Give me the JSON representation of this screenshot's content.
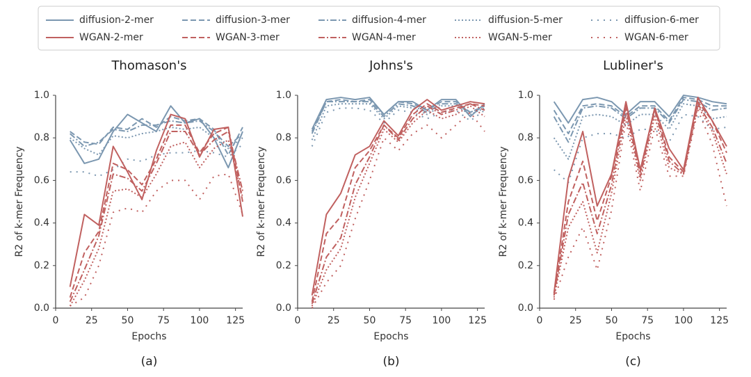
{
  "chart_data": [
    {
      "type": "line",
      "title": "Thomason's",
      "caption": "(a)",
      "xlabel": "Epochs",
      "ylabel": "R2 of k-mer Frequency",
      "x": [
        10,
        20,
        30,
        40,
        50,
        60,
        70,
        80,
        90,
        100,
        110,
        120,
        130
      ],
      "xlim": [
        0,
        130
      ],
      "xticks": [
        0,
        25,
        50,
        75,
        100,
        125
      ],
      "ylim": [
        0,
        1
      ],
      "yticks": [
        {
          "value": 0,
          "label": "0.0"
        },
        0.2,
        0.4,
        0.6,
        0.8,
        {
          "value": 1,
          "label": "1.0"
        }
      ],
      "series": [
        {
          "name": "diffusion-2-mer",
          "color": "#7b97b0",
          "dash": "solid",
          "values": [
            0.79,
            0.68,
            0.7,
            0.83,
            0.91,
            0.87,
            0.83,
            0.95,
            0.87,
            0.89,
            0.8,
            0.66,
            0.83
          ]
        },
        {
          "name": "diffusion-3-mer",
          "color": "#7b97b0",
          "dash": "dashed",
          "values": [
            0.83,
            0.78,
            0.77,
            0.85,
            0.84,
            0.89,
            0.85,
            0.9,
            0.88,
            0.89,
            0.84,
            0.72,
            0.85
          ]
        },
        {
          "name": "diffusion-4-mer",
          "color": "#7b97b0",
          "dash": "dashdot",
          "values": [
            0.82,
            0.76,
            0.78,
            0.84,
            0.83,
            0.86,
            0.86,
            0.88,
            0.87,
            0.88,
            0.83,
            0.76,
            0.82
          ]
        },
        {
          "name": "diffusion-5-mer",
          "color": "#7b97b0",
          "dash": "dotted",
          "values": [
            0.8,
            0.75,
            0.72,
            0.81,
            0.8,
            0.82,
            0.83,
            0.85,
            0.84,
            0.85,
            0.8,
            0.75,
            0.8
          ]
        },
        {
          "name": "diffusion-6-mer",
          "color": "#7b97b0",
          "dash": "loosedot",
          "values": [
            0.64,
            0.64,
            0.62,
            0.65,
            0.7,
            0.69,
            0.72,
            0.73,
            0.73,
            0.74,
            0.73,
            0.71,
            0.77
          ]
        },
        {
          "name": "WGAN-2-mer",
          "color": "#c0605f",
          "dash": "solid",
          "values": [
            0.1,
            0.44,
            0.39,
            0.76,
            0.64,
            0.51,
            0.74,
            0.91,
            0.89,
            0.71,
            0.84,
            0.85,
            0.43
          ]
        },
        {
          "name": "WGAN-3-mer",
          "color": "#c0605f",
          "dash": "dashed",
          "values": [
            0.05,
            0.26,
            0.36,
            0.68,
            0.65,
            0.58,
            0.7,
            0.86,
            0.86,
            0.73,
            0.82,
            0.85,
            0.5
          ]
        },
        {
          "name": "WGAN-4-mer",
          "color": "#c0605f",
          "dash": "dashdot",
          "values": [
            0.03,
            0.18,
            0.34,
            0.63,
            0.61,
            0.55,
            0.68,
            0.83,
            0.83,
            0.72,
            0.79,
            0.83,
            0.55
          ]
        },
        {
          "name": "WGAN-5-mer",
          "color": "#c0605f",
          "dash": "dotted",
          "values": [
            0.01,
            0.13,
            0.28,
            0.55,
            0.56,
            0.52,
            0.63,
            0.76,
            0.78,
            0.66,
            0.75,
            0.79,
            0.52
          ]
        },
        {
          "name": "WGAN-6-mer",
          "color": "#c0605f",
          "dash": "loosedot",
          "values": [
            0.01,
            0.05,
            0.2,
            0.45,
            0.47,
            0.45,
            0.55,
            0.6,
            0.6,
            0.51,
            0.62,
            0.63,
            0.44
          ]
        }
      ]
    },
    {
      "type": "line",
      "title": "Johns's",
      "caption": "(b)",
      "xlabel": "Epochs",
      "ylabel": "R2 of k-mer Frequency",
      "x": [
        10,
        20,
        30,
        40,
        50,
        60,
        70,
        80,
        90,
        100,
        110,
        120,
        130
      ],
      "xlim": [
        0,
        130
      ],
      "xticks": [
        0,
        25,
        50,
        75,
        100,
        125
      ],
      "ylim": [
        0,
        1
      ],
      "yticks": [
        {
          "value": 0,
          "label": "0.0"
        },
        0.2,
        0.4,
        0.6,
        0.8,
        {
          "value": 1,
          "label": "1.0"
        }
      ],
      "series": [
        {
          "color": "#7b97b0",
          "dash": "solid",
          "values": [
            0.84,
            0.98,
            0.99,
            0.98,
            0.99,
            0.91,
            0.97,
            0.97,
            0.93,
            0.98,
            0.98,
            0.9,
            0.96
          ]
        },
        {
          "color": "#7b97b0",
          "dash": "dashed",
          "values": [
            0.83,
            0.97,
            0.98,
            0.97,
            0.98,
            0.91,
            0.97,
            0.96,
            0.93,
            0.97,
            0.97,
            0.92,
            0.95
          ]
        },
        {
          "color": "#7b97b0",
          "dash": "dashdot",
          "values": [
            0.82,
            0.97,
            0.97,
            0.97,
            0.97,
            0.9,
            0.96,
            0.95,
            0.92,
            0.96,
            0.96,
            0.92,
            0.95
          ]
        },
        {
          "color": "#7b97b0",
          "dash": "dotted",
          "values": [
            0.79,
            0.95,
            0.96,
            0.96,
            0.96,
            0.89,
            0.95,
            0.94,
            0.91,
            0.95,
            0.95,
            0.91,
            0.94
          ]
        },
        {
          "color": "#7b97b0",
          "dash": "loosedot",
          "values": [
            0.76,
            0.92,
            0.94,
            0.94,
            0.93,
            0.87,
            0.93,
            0.92,
            0.89,
            0.92,
            0.93,
            0.88,
            0.93
          ]
        },
        {
          "color": "#c0605f",
          "dash": "solid",
          "values": [
            0.06,
            0.44,
            0.54,
            0.72,
            0.76,
            0.88,
            0.81,
            0.93,
            0.98,
            0.93,
            0.95,
            0.97,
            0.96
          ]
        },
        {
          "color": "#c0605f",
          "dash": "dashed",
          "values": [
            0.03,
            0.35,
            0.43,
            0.66,
            0.74,
            0.86,
            0.8,
            0.91,
            0.96,
            0.92,
            0.94,
            0.96,
            0.95
          ]
        },
        {
          "color": "#c0605f",
          "dash": "dashdot",
          "values": [
            0.02,
            0.24,
            0.33,
            0.58,
            0.71,
            0.86,
            0.79,
            0.89,
            0.95,
            0.91,
            0.93,
            0.96,
            0.93
          ]
        },
        {
          "color": "#c0605f",
          "dash": "dotted",
          "values": [
            0.01,
            0.18,
            0.28,
            0.52,
            0.68,
            0.84,
            0.78,
            0.87,
            0.93,
            0.89,
            0.91,
            0.95,
            0.9
          ]
        },
        {
          "color": "#c0605f",
          "dash": "loosedot",
          "values": [
            0.0,
            0.12,
            0.2,
            0.42,
            0.6,
            0.8,
            0.74,
            0.82,
            0.86,
            0.8,
            0.86,
            0.92,
            0.83
          ]
        }
      ]
    },
    {
      "type": "line",
      "title": "Lubliner's",
      "caption": "(c)",
      "xlabel": "Epochs",
      "ylabel": "R2 of k-mer Frequency",
      "x": [
        10,
        20,
        30,
        40,
        50,
        60,
        70,
        80,
        90,
        100,
        110,
        120,
        130
      ],
      "xlim": [
        0,
        130
      ],
      "xticks": [
        0,
        25,
        50,
        75,
        100,
        125
      ],
      "ylim": [
        0,
        1
      ],
      "yticks": [
        {
          "value": 0,
          "label": "0.0"
        },
        0.2,
        0.4,
        0.6,
        0.8,
        {
          "value": 1,
          "label": "1.0"
        }
      ],
      "series": [
        {
          "color": "#7b97b0",
          "dash": "solid",
          "values": [
            0.97,
            0.87,
            0.98,
            0.99,
            0.97,
            0.91,
            0.97,
            0.97,
            0.9,
            1.0,
            0.99,
            0.97,
            0.96
          ]
        },
        {
          "color": "#7b97b0",
          "dash": "dashed",
          "values": [
            0.93,
            0.82,
            0.95,
            0.96,
            0.95,
            0.9,
            0.95,
            0.95,
            0.88,
            0.99,
            0.98,
            0.95,
            0.95
          ]
        },
        {
          "color": "#7b97b0",
          "dash": "dashdot",
          "values": [
            0.9,
            0.78,
            0.94,
            0.95,
            0.94,
            0.89,
            0.94,
            0.94,
            0.87,
            0.98,
            0.97,
            0.93,
            0.94
          ]
        },
        {
          "color": "#7b97b0",
          "dash": "dotted",
          "values": [
            0.8,
            0.7,
            0.9,
            0.91,
            0.9,
            0.86,
            0.91,
            0.91,
            0.84,
            0.96,
            0.95,
            0.89,
            0.9
          ]
        },
        {
          "color": "#7b97b0",
          "dash": "loosedot",
          "values": [
            0.65,
            0.59,
            0.8,
            0.82,
            0.82,
            0.8,
            0.84,
            0.84,
            0.78,
            0.91,
            0.9,
            0.84,
            0.85
          ]
        },
        {
          "color": "#c0605f",
          "dash": "solid",
          "values": [
            0.07,
            0.61,
            0.83,
            0.48,
            0.63,
            0.97,
            0.65,
            0.94,
            0.75,
            0.65,
            0.99,
            0.88,
            0.76
          ]
        },
        {
          "color": "#c0605f",
          "dash": "dashed",
          "values": [
            0.06,
            0.5,
            0.69,
            0.41,
            0.62,
            0.95,
            0.64,
            0.94,
            0.71,
            0.64,
            0.97,
            0.88,
            0.73
          ]
        },
        {
          "color": "#c0605f",
          "dash": "dashdot",
          "values": [
            0.06,
            0.44,
            0.59,
            0.35,
            0.58,
            0.94,
            0.62,
            0.93,
            0.69,
            0.63,
            0.96,
            0.85,
            0.68
          ]
        },
        {
          "color": "#c0605f",
          "dash": "dotted",
          "values": [
            0.05,
            0.38,
            0.5,
            0.26,
            0.54,
            0.91,
            0.6,
            0.9,
            0.66,
            0.63,
            0.95,
            0.83,
            0.63
          ]
        },
        {
          "color": "#c0605f",
          "dash": "loosedot",
          "values": [
            0.04,
            0.24,
            0.38,
            0.18,
            0.46,
            0.88,
            0.55,
            0.85,
            0.62,
            0.62,
            0.93,
            0.77,
            0.48
          ]
        }
      ]
    }
  ]
}
